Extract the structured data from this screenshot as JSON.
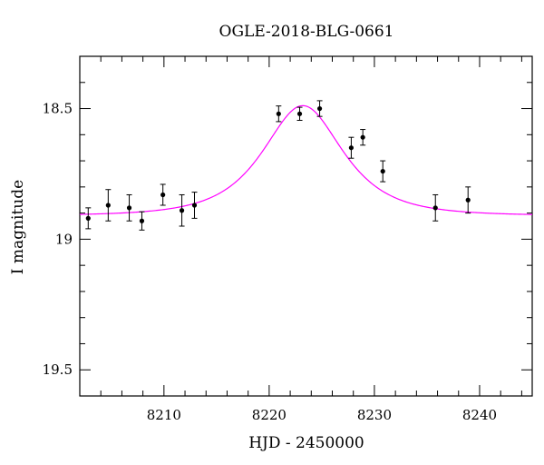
{
  "chart_data": {
    "type": "scatter",
    "title": "OGLE-2018-BLG-0661",
    "xlabel": "HJD - 2450000",
    "ylabel": "I magnitude",
    "xlim": [
      8202,
      8245
    ],
    "ylim": [
      19.6,
      18.3
    ],
    "y_inverted": true,
    "x_ticks": [
      8210,
      8220,
      8230,
      8240
    ],
    "y_ticks": [
      18.5,
      19,
      19.5
    ],
    "y_tick_labels": [
      "18.5",
      "19",
      "19.5"
    ],
    "grid": false,
    "series": [
      {
        "kind": "points_with_errorbars",
        "color": "#000000",
        "points": [
          {
            "x": 8202.8,
            "y": 18.92,
            "err": 0.04
          },
          {
            "x": 8204.7,
            "y": 18.87,
            "err": 0.06
          },
          {
            "x": 8206.7,
            "y": 18.88,
            "err": 0.05
          },
          {
            "x": 8207.9,
            "y": 18.93,
            "err": 0.035
          },
          {
            "x": 8209.9,
            "y": 18.83,
            "err": 0.04
          },
          {
            "x": 8211.7,
            "y": 18.89,
            "err": 0.06
          },
          {
            "x": 8212.9,
            "y": 18.87,
            "err": 0.05
          },
          {
            "x": 8220.9,
            "y": 18.52,
            "err": 0.03
          },
          {
            "x": 8222.9,
            "y": 18.52,
            "err": 0.025
          },
          {
            "x": 8224.8,
            "y": 18.5,
            "err": 0.03
          },
          {
            "x": 8227.8,
            "y": 18.65,
            "err": 0.04
          },
          {
            "x": 8228.9,
            "y": 18.61,
            "err": 0.03
          },
          {
            "x": 8230.8,
            "y": 18.74,
            "err": 0.04
          },
          {
            "x": 8235.8,
            "y": 18.88,
            "err": 0.05
          },
          {
            "x": 8238.9,
            "y": 18.85,
            "err": 0.05
          }
        ]
      },
      {
        "kind": "model_curve",
        "color": "#ff00ff",
        "model": {
          "t0": 8223.2,
          "tE": 5.0,
          "u0": 0.85,
          "baseline": 18.91
        }
      }
    ]
  }
}
